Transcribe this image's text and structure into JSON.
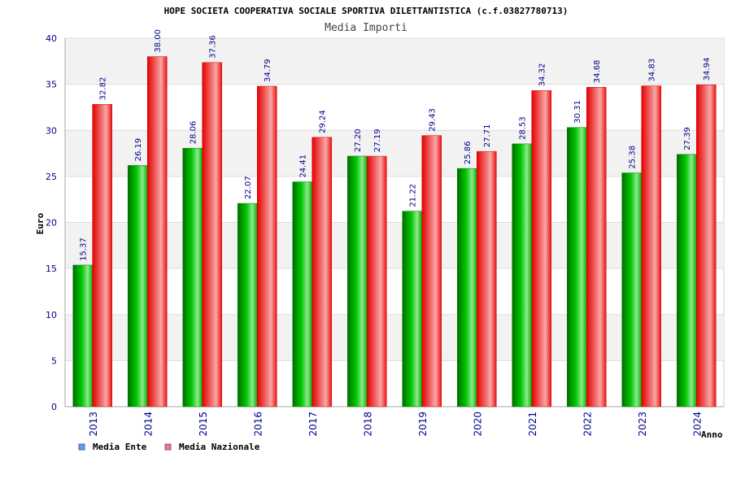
{
  "chart_data": {
    "type": "bar",
    "title": "HOPE SOCIETA COOPERATIVA SOCIALE SPORTIVA DILETTANTISTICA (c.f.03827780713)",
    "subtitle": "Media Importi",
    "xlabel": "Anno",
    "ylabel": "Euro",
    "ylim": [
      0,
      40
    ],
    "yticks": [
      0,
      5,
      10,
      15,
      20,
      25,
      30,
      35,
      40
    ],
    "grid": true,
    "legend_position": "bottom-left",
    "categories": [
      "2013",
      "2014",
      "2015",
      "2016",
      "2017",
      "2018",
      "2019",
      "2020",
      "2021",
      "2022",
      "2023",
      "2024"
    ],
    "series": [
      {
        "name": "Media Ente",
        "color": "#00aa00",
        "legend_color": "#6a9be8",
        "values": [
          15.37,
          26.19,
          28.06,
          22.07,
          24.41,
          27.2,
          21.22,
          25.86,
          28.53,
          30.31,
          25.38,
          27.39
        ],
        "labels": [
          "15.37",
          "26.19",
          "28.06",
          "22.07",
          "24.41",
          "27.20",
          "21.22",
          "25.86",
          "28.53",
          "30.31",
          "25.38",
          "27.39"
        ]
      },
      {
        "name": "Media Nazionale",
        "color": "#ee1111",
        "legend_color": "#e07aa0",
        "values": [
          32.82,
          38.0,
          37.36,
          34.79,
          29.24,
          27.19,
          29.43,
          27.71,
          34.32,
          34.68,
          34.83,
          34.94
        ],
        "labels": [
          "32.82",
          "38.00",
          "37.36",
          "34.79",
          "29.24",
          "27.19",
          "29.43",
          "27.71",
          "34.32",
          "34.68",
          "34.83",
          "34.94"
        ]
      }
    ]
  }
}
